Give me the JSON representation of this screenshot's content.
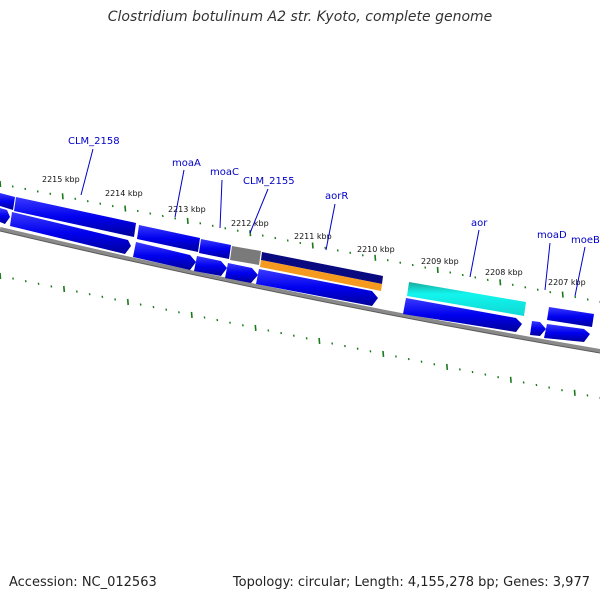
{
  "title": "Clostridium botulinum A2 str. Kyoto, complete genome",
  "accession": "Accession: NC_012563",
  "summary": "Topology: circular; Length: 4,155,278 bp; Genes: 3,977",
  "colors": {
    "gene": "#0000ee",
    "gene_dark": "#0a0a80",
    "gene_gray": "#7a7a7a",
    "orange": "#f59a1e",
    "cyan": "#12f5ee",
    "teal": "#1aa89c",
    "tick": "#1a7a1a",
    "backbone": "#8a8a8a",
    "label": "#0000c8"
  },
  "tick_labels": [
    "2215 kbp",
    "2214 kbp",
    "2213 kbp",
    "2212 kbp",
    "2211 kbp",
    "2210 kbp",
    "2209 kbp",
    "2208 kbp",
    "2207 kbp"
  ],
  "gene_labels": [
    "CLM_2158",
    "moaA",
    "moaC",
    "CLM_2155",
    "aorR",
    "aor",
    "moaD",
    "moeB"
  ],
  "features": {
    "forward_strand": [
      {
        "type": "blue-gene"
      },
      {
        "type": "blue-gene"
      },
      {
        "type": "blue-gene"
      },
      {
        "type": "blue-gene"
      },
      {
        "type": "gray-gene"
      },
      {
        "type": "navy-orange-gene"
      },
      {
        "type": "cyan-gene"
      },
      {
        "type": "blue-gene"
      }
    ],
    "reverse_strand": [
      {
        "type": "blue-arrow"
      },
      {
        "type": "blue-arrow"
      },
      {
        "type": "blue-arrow"
      },
      {
        "type": "blue-arrow"
      },
      {
        "type": "blue-arrow"
      },
      {
        "type": "blue-arrow"
      },
      {
        "type": "blue-arrow"
      },
      {
        "type": "blue-arrow"
      },
      {
        "type": "blue-arrow"
      }
    ]
  }
}
